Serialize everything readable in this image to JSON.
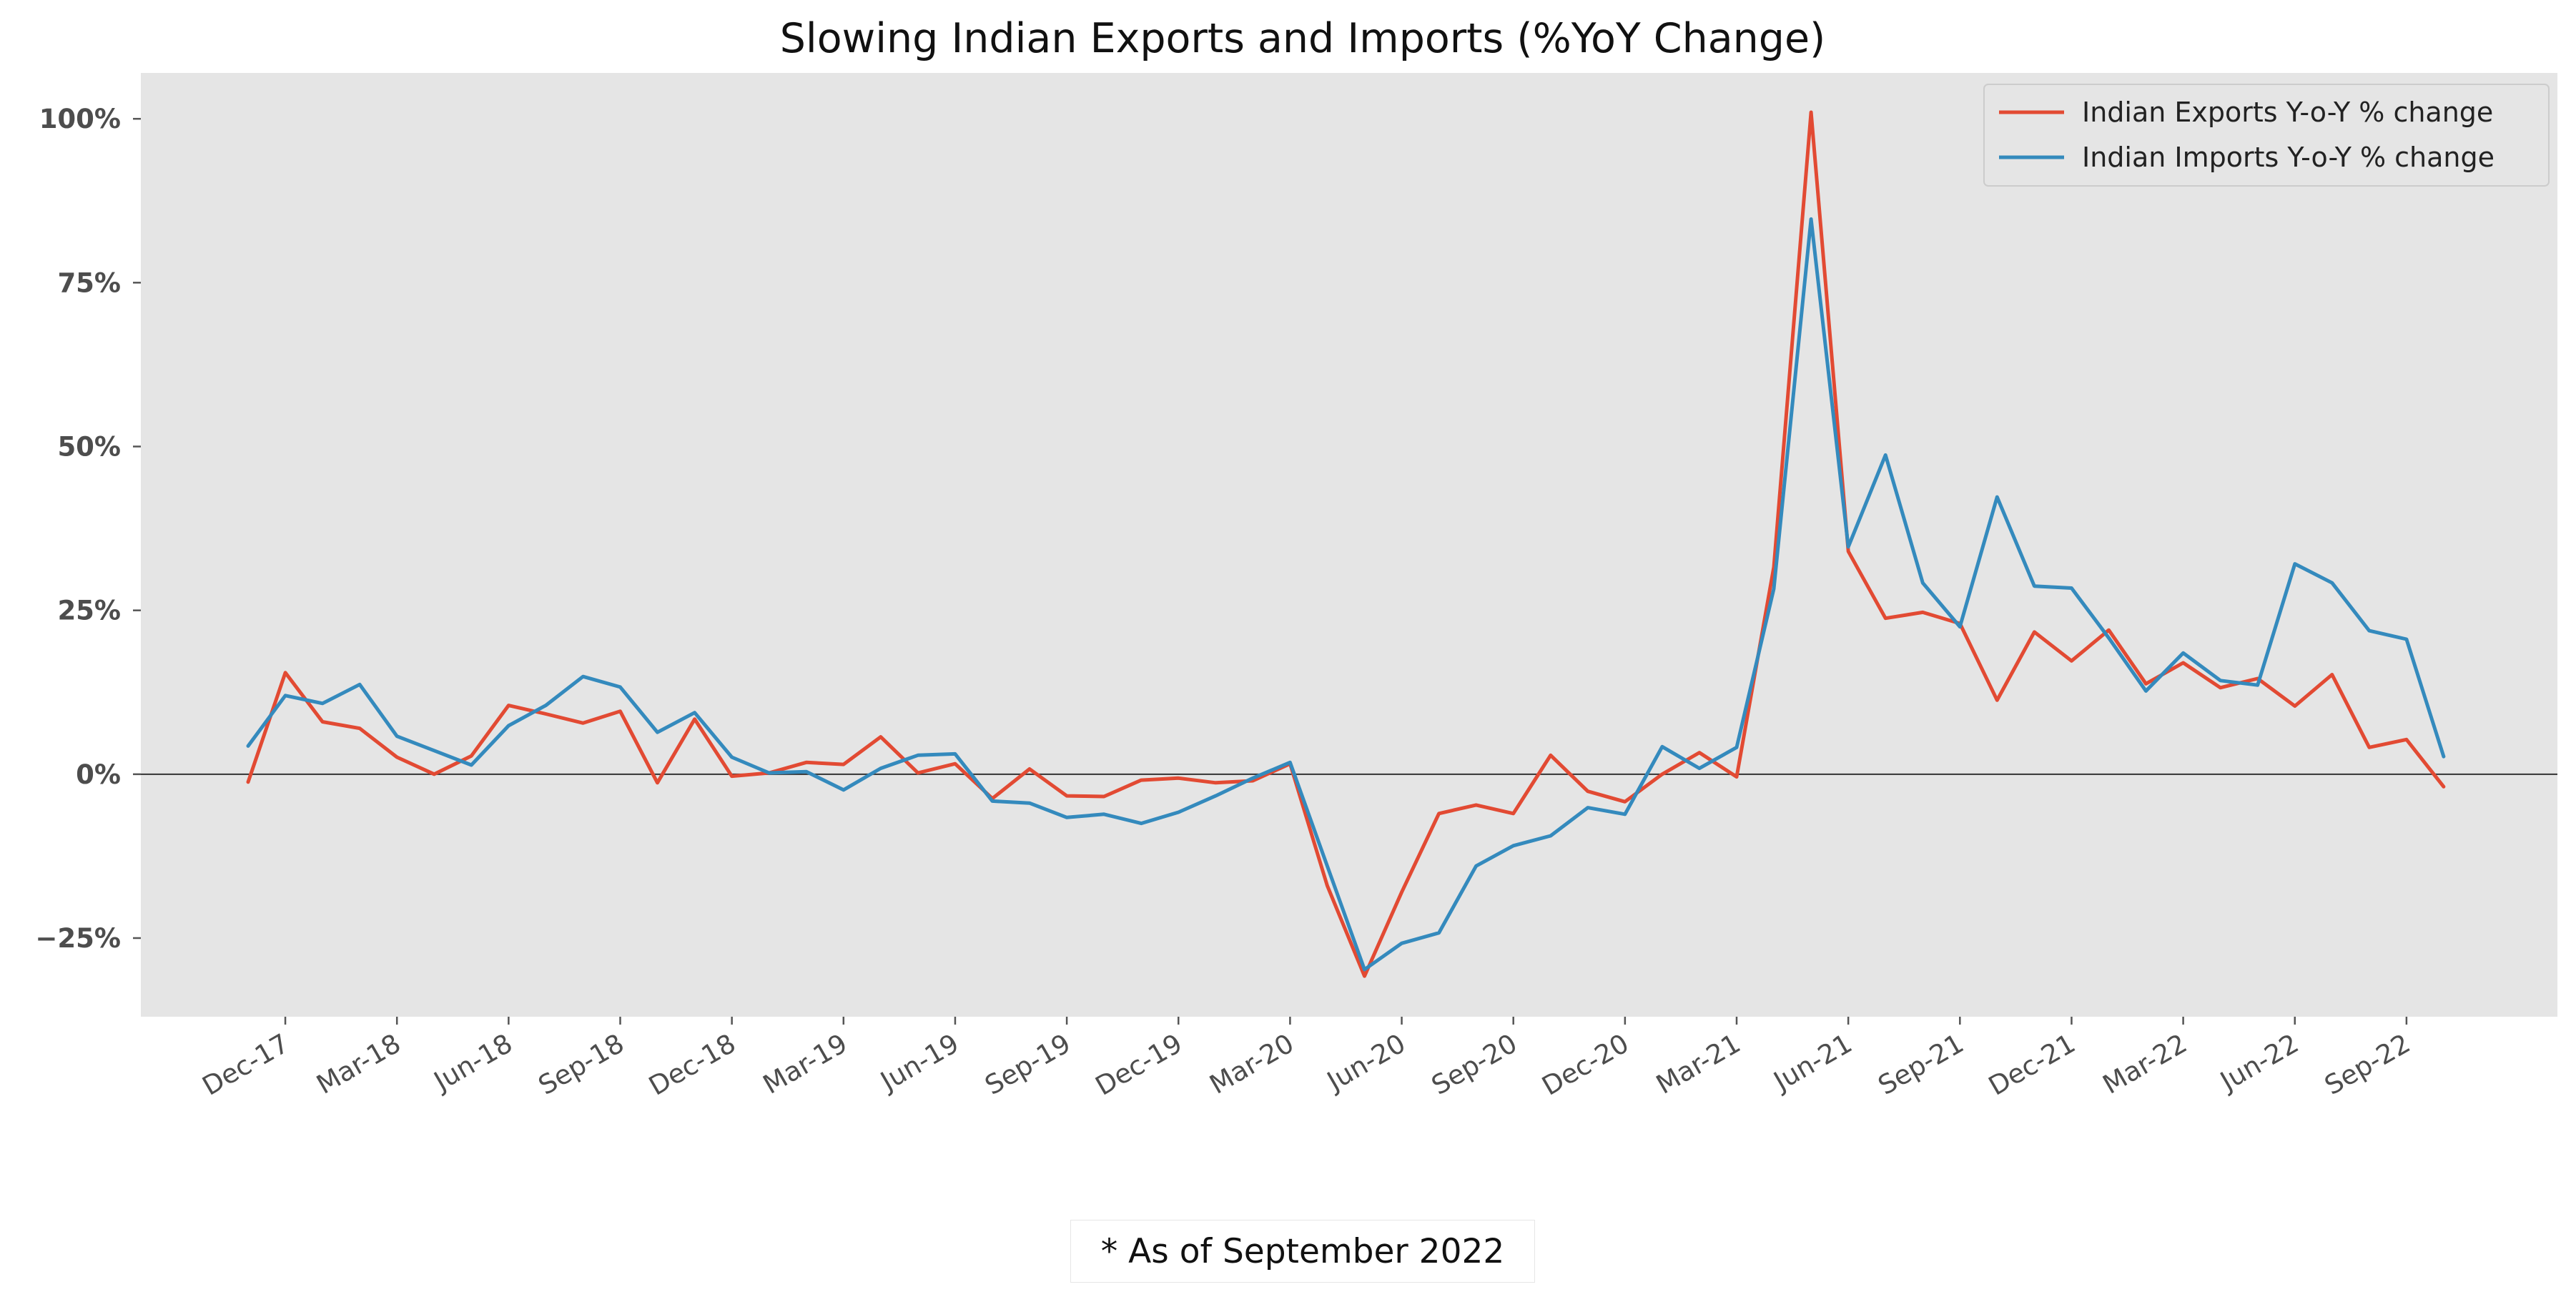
{
  "footnote": "* As of September 2022",
  "colors": {
    "exports": "#E24A33",
    "imports": "#348ABD",
    "plot_background": "#E5E5E5",
    "zero_line": "#333333"
  },
  "chart_data": {
    "type": "line",
    "title": "Slowing Indian Exports and Imports (%YoY Change)",
    "xlabel": "",
    "ylabel": "",
    "legend_position": "top-right",
    "grid": false,
    "ylim": [
      -37,
      107
    ],
    "yticks": [
      -25,
      0,
      25,
      50,
      75,
      100
    ],
    "ytick_labels": [
      "−25%",
      "0%",
      "25%",
      "50%",
      "75%",
      "100%"
    ],
    "xtick_labels": [
      "Dec-17",
      "Mar-18",
      "Jun-18",
      "Sep-18",
      "Dec-18",
      "Mar-19",
      "Jun-19",
      "Sep-19",
      "Dec-19",
      "Mar-20",
      "Jun-20",
      "Sep-20",
      "Dec-20",
      "Mar-21",
      "Jun-21",
      "Sep-21",
      "Dec-21",
      "Mar-22",
      "Jun-22",
      "Sep-22"
    ],
    "x": [
      "Nov-17",
      "Dec-17",
      "Jan-18",
      "Feb-18",
      "Mar-18",
      "Apr-18",
      "May-18",
      "Jun-18",
      "Jul-18",
      "Aug-18",
      "Sep-18",
      "Oct-18",
      "Nov-18",
      "Dec-18",
      "Jan-19",
      "Feb-19",
      "Mar-19",
      "Apr-19",
      "May-19",
      "Jun-19",
      "Jul-19",
      "Aug-19",
      "Sep-19",
      "Oct-19",
      "Nov-19",
      "Dec-19",
      "Jan-20",
      "Feb-20",
      "Mar-20",
      "Apr-20",
      "May-20",
      "Jun-20",
      "Jul-20",
      "Aug-20",
      "Sep-20",
      "Oct-20",
      "Nov-20",
      "Dec-20",
      "Jan-21",
      "Feb-21",
      "Mar-21",
      "Apr-21",
      "May-21",
      "Jun-21",
      "Jul-21",
      "Aug-21",
      "Sep-21",
      "Oct-21",
      "Nov-21",
      "Dec-21",
      "Jan-22",
      "Feb-22",
      "Mar-22",
      "Apr-22",
      "May-22",
      "Jun-22",
      "Jul-22",
      "Aug-22",
      "Sep-22",
      "Oct-22"
    ],
    "series": [
      {
        "name": "Indian Exports Y-o-Y % change",
        "values": [
          -1.2,
          15.5,
          8,
          7,
          2.6,
          0,
          2.8,
          10.5,
          9.2,
          7.8,
          9.6,
          -1.3,
          8.4,
          -0.3,
          0.2,
          1.8,
          1.5,
          5.7,
          0.2,
          1.6,
          -3.7,
          0.8,
          -3.3,
          -3.4,
          -0.9,
          -0.6,
          -1.3,
          -1,
          1.6,
          -17,
          -30.8,
          -18,
          -6,
          -4.7,
          -6,
          2.9,
          -2.6,
          -4.2,
          0,
          3.3,
          -0.4,
          31.6,
          101,
          34,
          23.8,
          24.7,
          23,
          11.3,
          21.7,
          17.3,
          22,
          13.8,
          17,
          13.2,
          14.6,
          10.4,
          15.2,
          4.1,
          5.3,
          -1.9
        ]
      },
      {
        "name": "Indian Imports Y-o-Y % change",
        "values": [
          4.3,
          12,
          10.8,
          13.7,
          5.8,
          3.6,
          1.4,
          7.4,
          10.5,
          14.9,
          13.3,
          6.4,
          9.4,
          2.6,
          0.2,
          0.4,
          -2.4,
          0.9,
          2.9,
          3.1,
          -4.1,
          -4.4,
          -6.6,
          -6.1,
          -7.5,
          -5.8,
          -3.3,
          -0.6,
          1.8,
          -14,
          -29.8,
          -25.8,
          -24.2,
          -14,
          -10.9,
          -9.4,
          -5.1,
          -6.1,
          4.2,
          0.9,
          4.1,
          28.3,
          84.7,
          34.7,
          48.7,
          29.2,
          22.5,
          42.3,
          28.7,
          28.4,
          20.8,
          12.7,
          18.5,
          14.3,
          13.6,
          32.1,
          29.2,
          21.9,
          20.6,
          2.7
        ]
      }
    ]
  }
}
